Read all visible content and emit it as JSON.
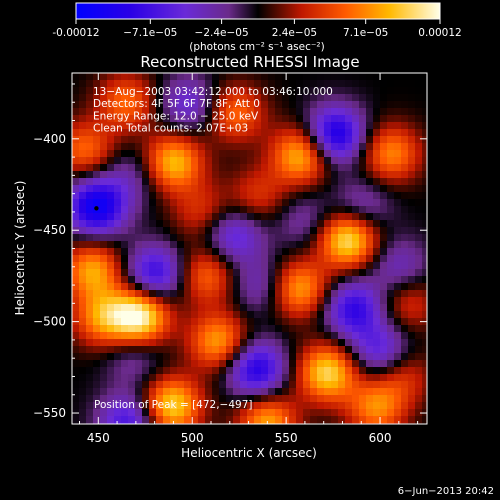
{
  "colorbar": {
    "tick_labels": [
      "-0.00012",
      "−7.1e−05",
      "−2.4e−05",
      "2.4e−05",
      "7.1e−05",
      "0.00012"
    ],
    "tick_values": [
      -0.00012,
      -7.1e-05,
      -2.4e-05,
      2.4e-05,
      7.1e-05,
      0.00012
    ],
    "unit_label": "(photons cm⁻² s⁻¹ asec⁻²)",
    "range": [
      -0.00012,
      0.00012
    ]
  },
  "chart_data": {
    "type": "heatmap",
    "title": "Reconstructed RHESSI Image",
    "xlabel": "Heliocentric X (arcsec)",
    "ylabel": "Heliocentric Y (arcsec)",
    "xlim": [
      436,
      625
    ],
    "ylim": [
      -556,
      -364
    ],
    "x_ticks": [
      450,
      500,
      550,
      600
    ],
    "y_ticks": [
      -400,
      -450,
      -500,
      -550
    ],
    "x_tick_labels": [
      "450",
      "500",
      "550",
      "600"
    ],
    "y_tick_labels": [
      "−400",
      "−450",
      "−500",
      "−550"
    ],
    "annotations": [
      "13−Aug−2003 03:42:12.000 to 03:46:10.000",
      "Detectors: 4F 5F 6F 7F 8F, Att 0",
      "Energy Range: 12.0 − 25.0 keV",
      "Clean     Total counts: 2.07E+03"
    ],
    "peak_label": "Position of Peak = [472,−497]",
    "peak_position": [
      472,
      -497
    ],
    "marker_position": [
      449,
      -438
    ],
    "features": [
      {
        "x": 449,
        "y": -437,
        "value": -0.00011
      },
      {
        "x": 576,
        "y": -398,
        "value": -0.0001
      },
      {
        "x": 586,
        "y": -493,
        "value": -8e-05
      },
      {
        "x": 534,
        "y": -526,
        "value": -9e-05
      },
      {
        "x": 600,
        "y": -516,
        "value": -6e-05
      },
      {
        "x": 480,
        "y": -474,
        "value": -8e-05
      },
      {
        "x": 466,
        "y": -555,
        "value": -7e-05
      },
      {
        "x": 522,
        "y": -453,
        "value": -6e-05
      },
      {
        "x": 536,
        "y": -480,
        "value": -4e-05
      },
      {
        "x": 498,
        "y": -381,
        "value": -5e-05
      },
      {
        "x": 469,
        "y": -520,
        "value": -3e-05
      },
      {
        "x": 590,
        "y": -438,
        "value": -4e-05
      },
      {
        "x": 610,
        "y": -470,
        "value": -4e-05
      },
      {
        "x": 468,
        "y": -420,
        "value": -3e-05
      },
      {
        "x": 560,
        "y": -445,
        "value": -3e-05
      },
      {
        "x": 472,
        "y": -497,
        "value": 0.00012
      },
      {
        "x": 583,
        "y": -455,
        "value": 0.00011
      },
      {
        "x": 572,
        "y": -528,
        "value": 0.0001
      },
      {
        "x": 558,
        "y": -409,
        "value": 9e-05
      },
      {
        "x": 490,
        "y": -413,
        "value": 9e-05
      },
      {
        "x": 514,
        "y": -511,
        "value": 8e-05
      },
      {
        "x": 557,
        "y": -482,
        "value": 8e-05
      },
      {
        "x": 489,
        "y": -546,
        "value": 0.0001
      },
      {
        "x": 447,
        "y": -472,
        "value": 8e-05
      },
      {
        "x": 452,
        "y": -498,
        "value": 7e-05
      },
      {
        "x": 606,
        "y": -408,
        "value": 7e-05
      },
      {
        "x": 540,
        "y": -555,
        "value": 8e-05
      },
      {
        "x": 598,
        "y": -547,
        "value": 7e-05
      },
      {
        "x": 508,
        "y": -475,
        "value": 6e-05
      },
      {
        "x": 523,
        "y": -386,
        "value": 6e-05
      },
      {
        "x": 443,
        "y": -406,
        "value": 6e-05
      },
      {
        "x": 465,
        "y": -380,
        "value": 6e-05
      },
      {
        "x": 535,
        "y": -431,
        "value": 4e-05
      },
      {
        "x": 505,
        "y": -440,
        "value": 4e-05
      },
      {
        "x": 615,
        "y": -490,
        "value": 4e-05
      },
      {
        "x": 612,
        "y": -530,
        "value": 4e-05
      }
    ]
  },
  "footer": {
    "timestamp": "6−Jun−2013 20:42"
  }
}
